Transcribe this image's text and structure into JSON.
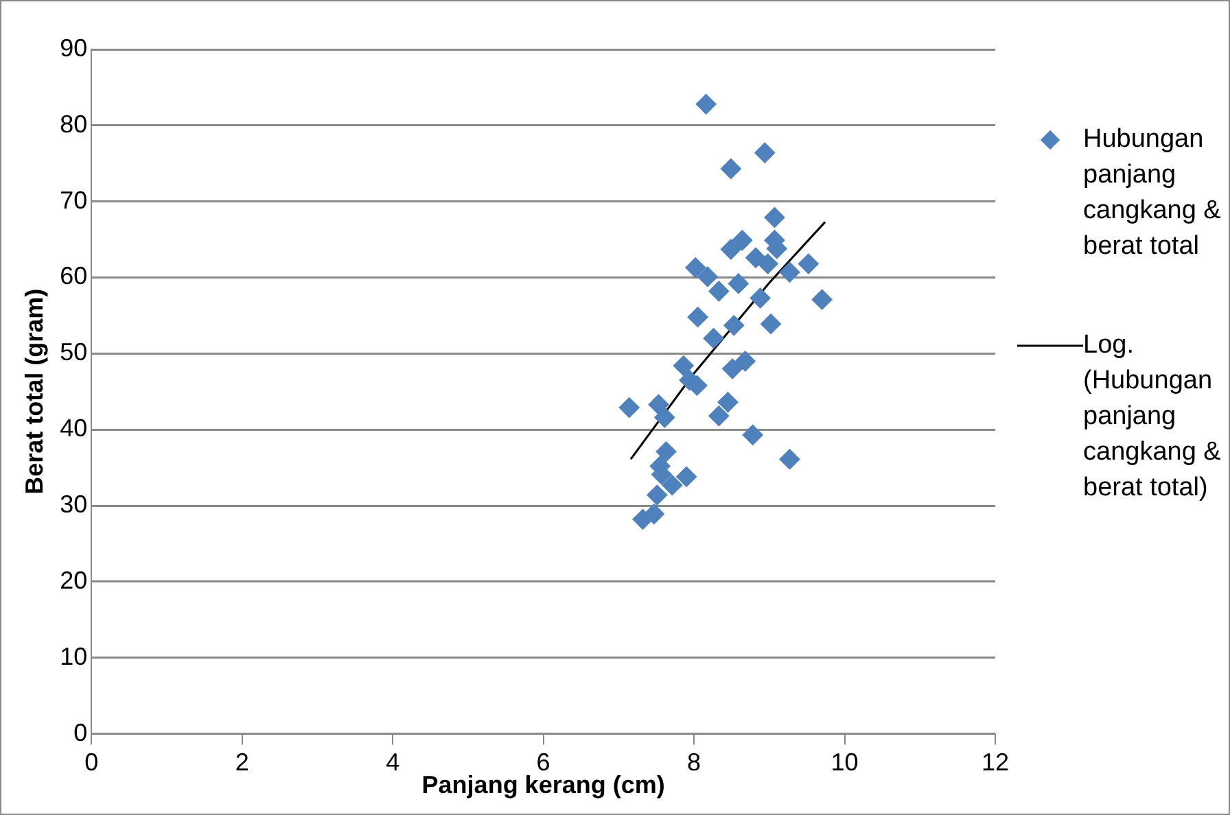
{
  "chart_data": {
    "type": "scatter",
    "xlabel": "Panjang kerang (cm)",
    "ylabel": "Berat total (gram)",
    "xlim": [
      0,
      12
    ],
    "xticks": [
      0,
      2,
      4,
      6,
      8,
      10,
      12
    ],
    "ylim": [
      0,
      90
    ],
    "yticks": [
      0,
      10,
      20,
      30,
      40,
      50,
      60,
      70,
      80,
      90
    ],
    "grid": "y",
    "legend": "right",
    "marker": "diamond",
    "series": [
      {
        "name": "Hubungan panjang cangkang & berat total",
        "color": "#4f81bd",
        "x": [
          8.16,
          8.49,
          8.94,
          9.07,
          9.07,
          9.1,
          8.64,
          8.49,
          8.02,
          8.18,
          8.82,
          8.98,
          9.52,
          9.27,
          8.59,
          8.33,
          8.88,
          9.7,
          8.05,
          9.02,
          8.53,
          8.26,
          8.68,
          8.51,
          7.86,
          7.94,
          8.04,
          8.45,
          8.33,
          7.14,
          7.53,
          7.61,
          8.78,
          9.27,
          7.63,
          7.55,
          7.57,
          7.9,
          7.71,
          7.51,
          7.47,
          7.32
        ],
        "values": [
          82.8,
          74.3,
          76.4,
          67.9,
          64.9,
          63.8,
          64.9,
          63.7,
          61.3,
          60.1,
          62.6,
          61.8,
          61.8,
          60.7,
          59.2,
          58.2,
          57.3,
          57.1,
          54.8,
          53.9,
          53.7,
          52,
          49,
          48,
          48.4,
          46.5,
          45.8,
          43.6,
          41.8,
          42.9,
          43.3,
          41.6,
          39.3,
          36.1,
          37.1,
          35.2,
          34.1,
          33.8,
          32.7,
          31.4,
          28.9,
          28.2
        ]
      },
      {
        "name": "Log. (Hubungan panjang cangkang & berat total)",
        "type": "line",
        "color": "#000000",
        "marker": "none",
        "x": [
          7.16,
          8,
          9,
          9.74
        ],
        "values": [
          36.1,
          47.4,
          59.3,
          67.3
        ]
      }
    ]
  }
}
